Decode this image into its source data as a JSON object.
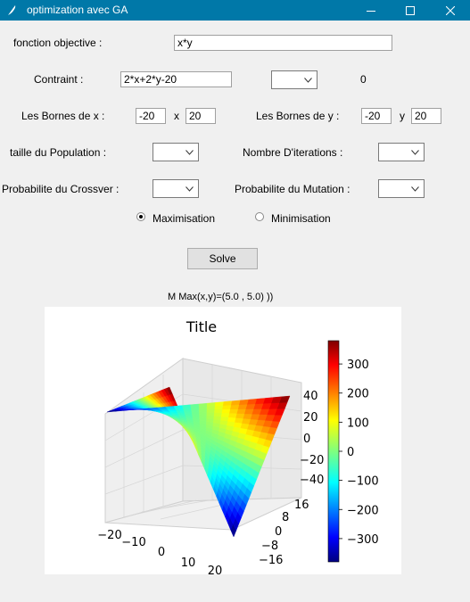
{
  "window": {
    "title": "optimization avec GA"
  },
  "form": {
    "objective_label": "fonction objective :",
    "objective_value": "x*y",
    "constraint_label": "Contraint :",
    "constraint_value": "2*x+2*y-20",
    "constraint_result": "0",
    "bounds_x_label": "Les Bornes de x :",
    "bounds_x_min": "-20",
    "bounds_x_sep": "x",
    "bounds_x_max": "20",
    "bounds_y_label": "Les Bornes de y :",
    "bounds_y_min": "-20",
    "bounds_y_sep": "y",
    "bounds_y_max": "20",
    "population_label": "taille du Population :",
    "iterations_label": "Nombre D'iterations :",
    "crossover_label": "Probabilite du Crossver :",
    "mutation_label": "Probabilite du Mutation :",
    "maximisation_label": "Maximisation",
    "minimisation_label": "Minimisation",
    "selected_mode": "Maximisation",
    "solve_label": "Solve"
  },
  "result": {
    "text": "M Max(x,y)=(5.0 , 5.0) ))"
  },
  "chart_data": {
    "type": "surface3d",
    "title": "Title",
    "function": "x*y",
    "x_range": [
      -20,
      20
    ],
    "y_range": [
      -20,
      20
    ],
    "x_ticks": [
      "−20",
      "−10",
      "0",
      "10",
      "20"
    ],
    "y_ticks": [
      "−16",
      "−8",
      "0",
      "8",
      "16"
    ],
    "z_ticks": [
      "−40",
      "−20",
      "0",
      "20",
      "40"
    ],
    "colorbar_ticks": [
      "300",
      "200",
      "100",
      "0",
      "−100",
      "−200",
      "−300"
    ],
    "colorbar_values": [
      300,
      200,
      100,
      0,
      -100,
      -200,
      -300
    ],
    "colorbar_range": [
      -380,
      380
    ],
    "colormap": "jet"
  },
  "colors": {
    "titlebar": "#0078a8",
    "background": "#f0f0f0"
  },
  "icons": {
    "app": "feather-icon",
    "minimize": "minimize-icon",
    "maximize": "maximize-icon",
    "close": "close-icon"
  }
}
